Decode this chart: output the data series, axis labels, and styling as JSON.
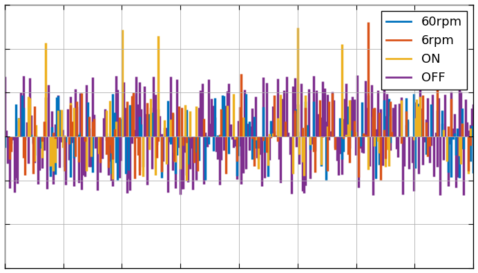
{
  "title": "",
  "xlabel": "",
  "ylabel": "",
  "xlim": [
    0,
    1
  ],
  "ylim": [
    -1.5,
    1.5
  ],
  "legend_labels": [
    "60rpm",
    "6rpm",
    "ON",
    "OFF"
  ],
  "legend_colors": [
    "#0072BD",
    "#D95319",
    "#EDB120",
    "#7E2F8E"
  ],
  "background_color": "#ffffff",
  "n_points": 300,
  "seed": 42,
  "figsize": [
    6.92,
    3.96
  ],
  "dpi": 100,
  "linewidth": 2.5
}
